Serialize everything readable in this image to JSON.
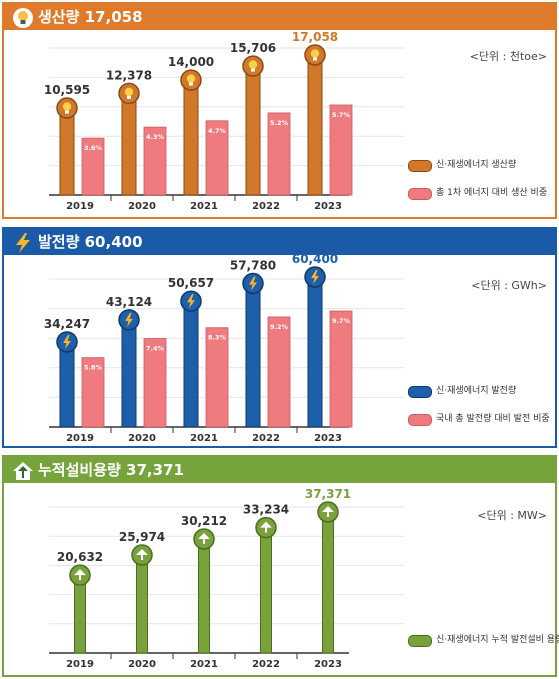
{
  "colors": {
    "orange": "#d2782a",
    "blue": "#1d5fa8",
    "green": "#7aa23c",
    "pink": "#f07b7f",
    "header_orange": "#e07a2b",
    "header_blue": "#1a5aa6",
    "header_green": "#77a33d"
  },
  "panels": [
    {
      "title": "생산량 17,058",
      "unit": "<단위 : 천toe>",
      "legend": [
        "신·재생에너지 생산량",
        "총 1차 에너지 대비 생산 비중"
      ]
    },
    {
      "title": "발전량 60,400",
      "unit": "<단위 : GWh>",
      "legend": [
        "신·재생에너지 발전량",
        "국내 총 발전량 대비 발전 비중"
      ]
    },
    {
      "title": "누적설비용량 37,371",
      "unit": "<단위 : MW>",
      "legend": [
        "신·재생에너지 누적 발전설비 용량"
      ]
    }
  ],
  "chart_data": [
    {
      "type": "bar",
      "categories": [
        "2019",
        "2020",
        "2021",
        "2022",
        "2023"
      ],
      "series": [
        {
          "name": "신·재생에너지 생산량",
          "values": [
            10595,
            12378,
            14000,
            15706,
            17058
          ],
          "labels": [
            "10,595",
            "12,378",
            "14,000",
            "15,706",
            "17,058"
          ]
        },
        {
          "name": "총 1차 에너지 대비 생산 비중",
          "values": [
            3.6,
            4.3,
            4.7,
            5.2,
            5.7
          ],
          "labels": [
            "3.6%",
            "4.3%",
            "4.7%",
            "5.2%",
            "5.7%"
          ]
        }
      ]
    },
    {
      "type": "bar",
      "categories": [
        "2019",
        "2020",
        "2021",
        "2022",
        "2023"
      ],
      "series": [
        {
          "name": "신·재생에너지 발전량",
          "values": [
            34247,
            43124,
            50657,
            57780,
            60400
          ],
          "labels": [
            "34,247",
            "43,124",
            "50,657",
            "57,780",
            "60,400"
          ]
        },
        {
          "name": "국내 총 발전량 대비 발전 비중",
          "values": [
            5.8,
            7.4,
            8.3,
            9.2,
            9.7
          ],
          "labels": [
            "5.8%",
            "7.4%",
            "8.3%",
            "9.2%",
            "9.7%"
          ]
        }
      ]
    },
    {
      "type": "bar",
      "categories": [
        "2019",
        "2020",
        "2021",
        "2022",
        "2023"
      ],
      "series": [
        {
          "name": "신·재생에너지 누적 발전설비 용량",
          "values": [
            20632,
            25974,
            30212,
            33234,
            37371
          ],
          "labels": [
            "20,632",
            "25,974",
            "30,212",
            "33,234",
            "37,371"
          ]
        }
      ]
    }
  ]
}
